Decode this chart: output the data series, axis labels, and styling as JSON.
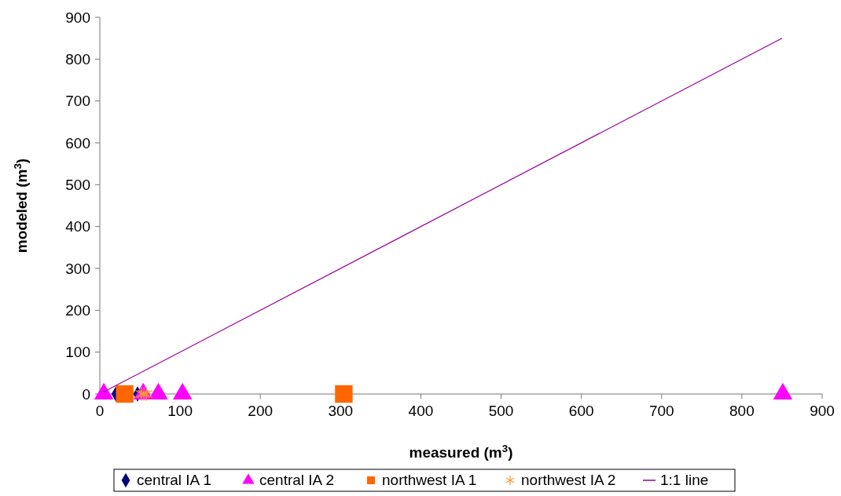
{
  "chart_data": {
    "type": "scatter",
    "xlabel": "measured (m$^{3}$)",
    "ylabel": "modeled (m$^{3}$)",
    "xlim": [
      0,
      900
    ],
    "ylim": [
      0,
      900
    ],
    "xticks": [
      0,
      100,
      200,
      300,
      400,
      500,
      600,
      700,
      800,
      900
    ],
    "yticks": [
      0,
      100,
      200,
      300,
      400,
      500,
      600,
      700,
      800,
      900
    ],
    "grid": false,
    "legend": "bottom",
    "series": [
      {
        "name": "central IA 1",
        "color": "#000080",
        "marker": "diamond",
        "x": [
          20,
          47
        ],
        "values": [
          0,
          0
        ]
      },
      {
        "name": "central IA 2",
        "color": "#ff00ff",
        "marker": "triangle",
        "x": [
          5,
          54,
          73,
          103,
          851
        ],
        "values": [
          0,
          0,
          0,
          0,
          0
        ]
      },
      {
        "name": "northwest IA 1",
        "color": "#ff6600",
        "marker": "square",
        "x": [
          31,
          304
        ],
        "values": [
          0,
          0
        ]
      },
      {
        "name": "northwest IA 2",
        "color": "#ff9933",
        "marker": "cross",
        "x": [
          52,
          55,
          58
        ],
        "values": [
          0,
          0,
          0
        ]
      },
      {
        "name": "1:1 line",
        "type": "line",
        "color": "#990099",
        "marker": "none",
        "x": [
          5,
          850
        ],
        "values": [
          5,
          850
        ]
      }
    ]
  }
}
